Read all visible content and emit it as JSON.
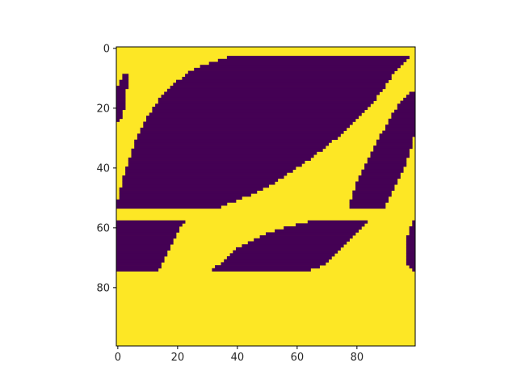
{
  "chart_data": {
    "type": "heatmap",
    "title": "",
    "xlabel": "",
    "ylabel": "",
    "xlim": [
      -0.5,
      99.5
    ],
    "ylim": [
      99.5,
      -0.5
    ],
    "x_ticks": [
      0,
      20,
      40,
      60,
      80
    ],
    "y_ticks": [
      0,
      20,
      40,
      60,
      80
    ],
    "grid": false,
    "colormap": "viridis",
    "colors": {
      "low": "#440154",
      "high": "#fde725"
    },
    "values_described": "binary 100x100 image; each row lists [start, end] inclusive column runs whose value is 0 (dark purple); all other cells are 1 (yellow)",
    "low_runs": {
      "3": [
        [
          37,
          97
        ]
      ],
      "4": [
        [
          34,
          96
        ]
      ],
      "5": [
        [
          31,
          95
        ]
      ],
      "6": [
        [
          28,
          94
        ]
      ],
      "7": [
        [
          26,
          93
        ]
      ],
      "8": [
        [
          24,
          92
        ]
      ],
      "9": [
        [
          2,
          3
        ],
        [
          23,
          91
        ]
      ],
      "10": [
        [
          2,
          3
        ],
        [
          22,
          91
        ]
      ],
      "11": [
        [
          1,
          3
        ],
        [
          20,
          90
        ]
      ],
      "12": [
        [
          1,
          3
        ],
        [
          19,
          89
        ]
      ],
      "13": [
        [
          0,
          3
        ],
        [
          18,
          89
        ]
      ],
      "14": [
        [
          0,
          2
        ],
        [
          17,
          88
        ]
      ],
      "15": [
        [
          0,
          2
        ],
        [
          16,
          87
        ],
        [
          98,
          99
        ]
      ],
      "16": [
        [
          0,
          2
        ],
        [
          15,
          86
        ],
        [
          97,
          99
        ]
      ],
      "17": [
        [
          0,
          2
        ],
        [
          14,
          86
        ],
        [
          96,
          99
        ]
      ],
      "18": [
        [
          0,
          2
        ],
        [
          14,
          85
        ],
        [
          95,
          99
        ]
      ],
      "19": [
        [
          0,
          2
        ],
        [
          13,
          84
        ],
        [
          94,
          99
        ]
      ],
      "20": [
        [
          0,
          2
        ],
        [
          12,
          83
        ],
        [
          94,
          99
        ]
      ],
      "21": [
        [
          0,
          1
        ],
        [
          12,
          82
        ],
        [
          93,
          99
        ]
      ],
      "22": [
        [
          0,
          1
        ],
        [
          11,
          81
        ],
        [
          92,
          99
        ]
      ],
      "23": [
        [
          0,
          1
        ],
        [
          10,
          80
        ],
        [
          92,
          99
        ]
      ],
      "24": [
        [
          0,
          0
        ],
        [
          10,
          79
        ],
        [
          91,
          99
        ]
      ],
      "25": [
        [
          9,
          78
        ],
        [
          91,
          99
        ]
      ],
      "26": [
        [
          9,
          77
        ],
        [
          90,
          99
        ]
      ],
      "27": [
        [
          8,
          76
        ],
        [
          90,
          99
        ]
      ],
      "28": [
        [
          8,
          75
        ],
        [
          89,
          99
        ]
      ],
      "29": [
        [
          7,
          74
        ],
        [
          88,
          99
        ]
      ],
      "30": [
        [
          7,
          73
        ],
        [
          88,
          98
        ]
      ],
      "31": [
        [
          6,
          71
        ],
        [
          87,
          98
        ]
      ],
      "32": [
        [
          6,
          70
        ],
        [
          87,
          98
        ]
      ],
      "33": [
        [
          6,
          69
        ],
        [
          86,
          98
        ]
      ],
      "34": [
        [
          5,
          68
        ],
        [
          86,
          97
        ]
      ],
      "35": [
        [
          5,
          66
        ],
        [
          85,
          97
        ]
      ],
      "36": [
        [
          5,
          65
        ],
        [
          85,
          97
        ]
      ],
      "37": [
        [
          4,
          64
        ],
        [
          84,
          96
        ]
      ],
      "38": [
        [
          4,
          62
        ],
        [
          84,
          96
        ]
      ],
      "39": [
        [
          4,
          61
        ],
        [
          83,
          96
        ]
      ],
      "40": [
        [
          3,
          59
        ],
        [
          83,
          95
        ]
      ],
      "41": [
        [
          3,
          58
        ],
        [
          82,
          95
        ]
      ],
      "42": [
        [
          3,
          56
        ],
        [
          82,
          94
        ]
      ],
      "43": [
        [
          2,
          55
        ],
        [
          81,
          94
        ]
      ],
      "44": [
        [
          2,
          53
        ],
        [
          81,
          93
        ]
      ],
      "45": [
        [
          2,
          52
        ],
        [
          80,
          93
        ]
      ],
      "46": [
        [
          2,
          50
        ],
        [
          80,
          92
        ]
      ],
      "47": [
        [
          1,
          48
        ],
        [
          80,
          92
        ]
      ],
      "48": [
        [
          1,
          46
        ],
        [
          79,
          91
        ]
      ],
      "49": [
        [
          1,
          44
        ],
        [
          79,
          91
        ]
      ],
      "50": [
        [
          1,
          41
        ],
        [
          79,
          90
        ]
      ],
      "51": [
        [
          0,
          39
        ],
        [
          78,
          90
        ]
      ],
      "52": [
        [
          0,
          36
        ],
        [
          78,
          89
        ]
      ],
      "53": [
        [
          0,
          34
        ],
        [
          78,
          89
        ]
      ],
      "58": [
        [
          0,
          22
        ],
        [
          64,
          83
        ],
        [
          99,
          99
        ]
      ],
      "59": [
        [
          0,
          21
        ],
        [
          60,
          82
        ],
        [
          99,
          99
        ]
      ],
      "60": [
        [
          0,
          20
        ],
        [
          56,
          81
        ],
        [
          98,
          99
        ]
      ],
      "61": [
        [
          0,
          20
        ],
        [
          53,
          80
        ],
        [
          98,
          99
        ]
      ],
      "62": [
        [
          0,
          19
        ],
        [
          50,
          79
        ],
        [
          98,
          99
        ]
      ],
      "63": [
        [
          0,
          19
        ],
        [
          48,
          78
        ],
        [
          97,
          99
        ]
      ],
      "64": [
        [
          0,
          18
        ],
        [
          46,
          77
        ],
        [
          97,
          99
        ]
      ],
      "65": [
        [
          0,
          18
        ],
        [
          44,
          76
        ],
        [
          97,
          99
        ]
      ],
      "66": [
        [
          0,
          17
        ],
        [
          42,
          75
        ],
        [
          97,
          99
        ]
      ],
      "67": [
        [
          0,
          17
        ],
        [
          40,
          74
        ],
        [
          97,
          99
        ]
      ],
      "68": [
        [
          0,
          16
        ],
        [
          39,
          73
        ],
        [
          97,
          99
        ]
      ],
      "69": [
        [
          0,
          16
        ],
        [
          38,
          72
        ],
        [
          97,
          99
        ]
      ],
      "70": [
        [
          0,
          15
        ],
        [
          37,
          71
        ],
        [
          97,
          99
        ]
      ],
      "71": [
        [
          0,
          15
        ],
        [
          36,
          70
        ],
        [
          97,
          99
        ]
      ],
      "72": [
        [
          0,
          14
        ],
        [
          35,
          69
        ],
        [
          97,
          99
        ]
      ],
      "73": [
        [
          0,
          14
        ],
        [
          33,
          67
        ],
        [
          98,
          99
        ]
      ],
      "74": [
        [
          0,
          13
        ],
        [
          32,
          64
        ],
        [
          99,
          99
        ]
      ]
    }
  }
}
